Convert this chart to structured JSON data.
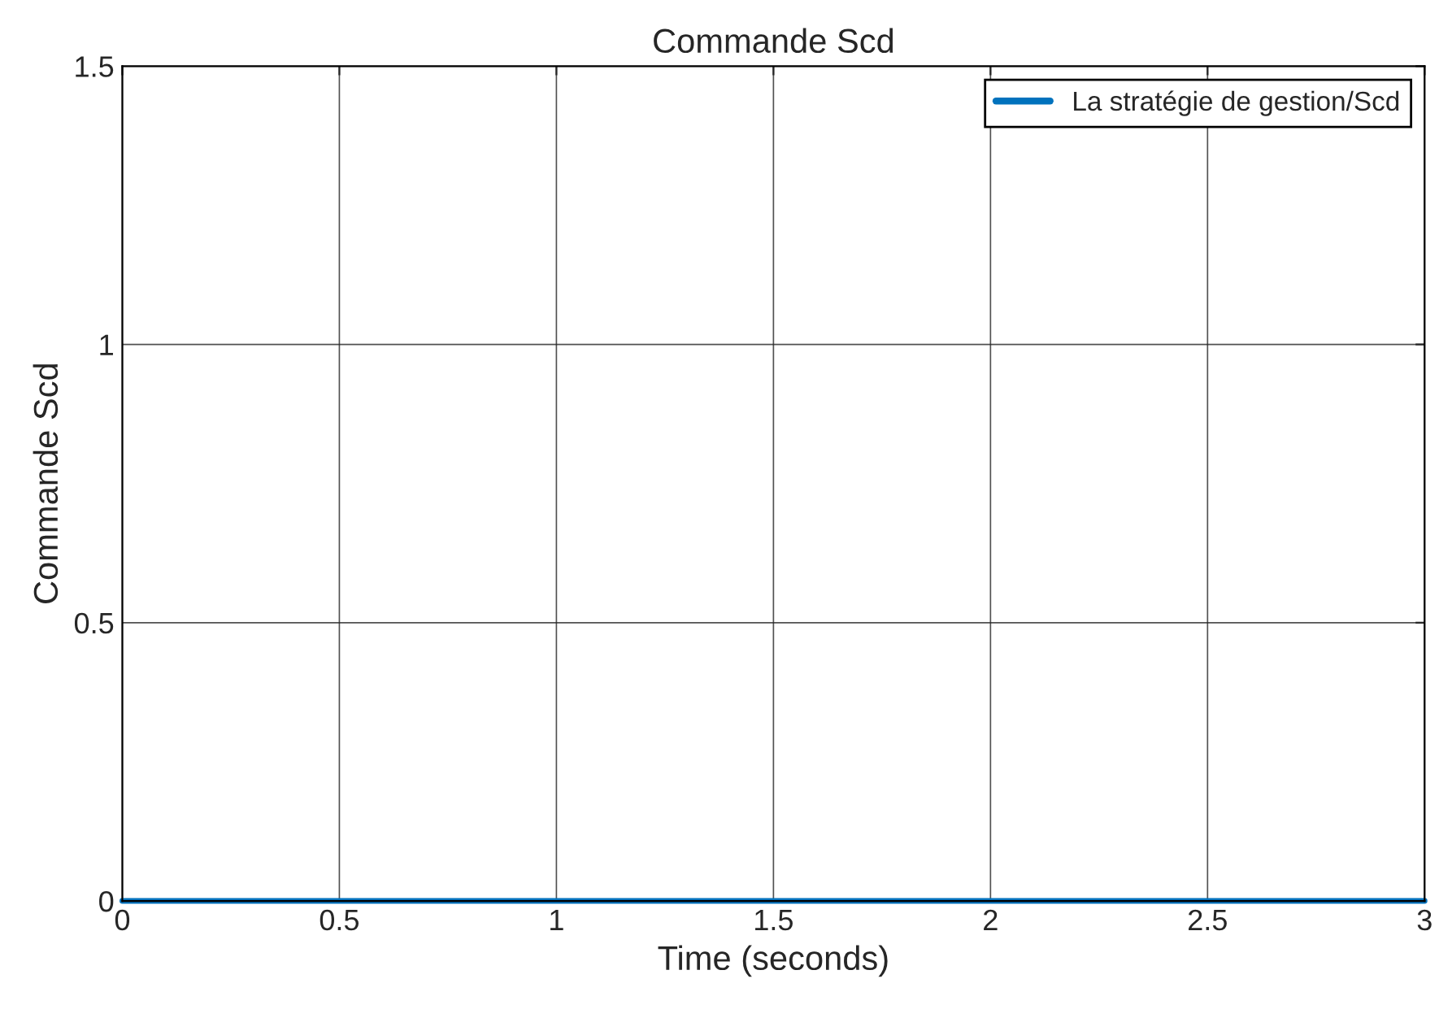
{
  "chart_data": {
    "type": "step",
    "title": "Commande Scd",
    "xlabel": "Time (seconds)",
    "ylabel": "Commande Scd",
    "x": [
      0,
      3
    ],
    "series": [
      {
        "name": "La stratégie de gestion/Scd",
        "color": "#0072bd",
        "values": [
          0,
          0
        ]
      }
    ],
    "xlim": [
      0,
      3
    ],
    "xticks": [
      0,
      0.5,
      1,
      1.5,
      2,
      2.5,
      3
    ],
    "ylim": [
      0,
      1.5
    ],
    "yticks": [
      0,
      0.5,
      1,
      1.5
    ],
    "grid": true,
    "legend": "top right"
  }
}
